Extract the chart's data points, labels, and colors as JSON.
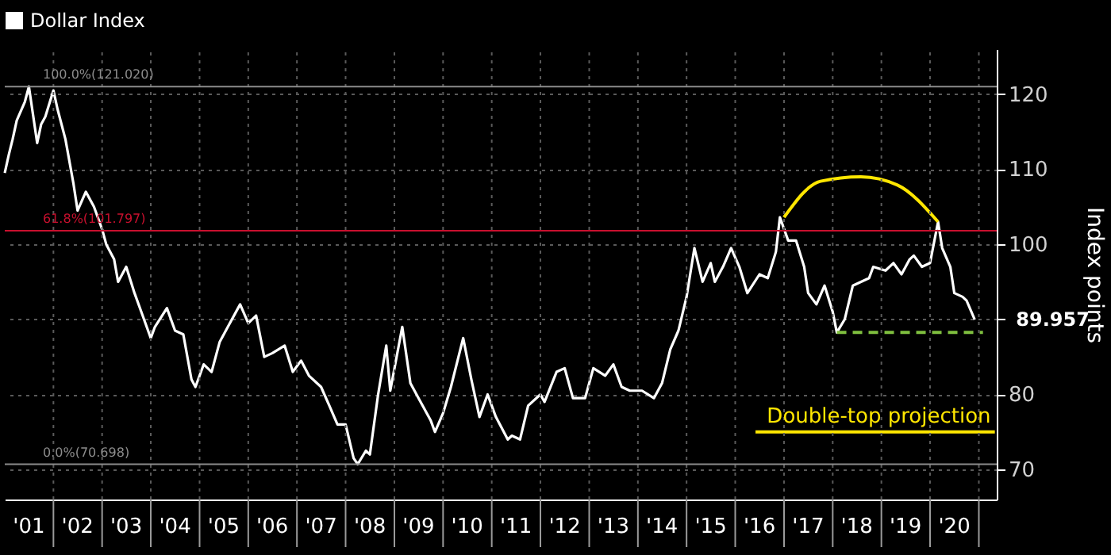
{
  "chart_data": {
    "type": "line",
    "ylabel": "Index points",
    "legend": "top left",
    "grid": true,
    "marker": "none",
    "xlim": [
      "2001-01-01",
      "2021-05-15"
    ],
    "ylim": [
      66,
      126
    ],
    "yticks": [
      70,
      80,
      {
        "value": 90,
        "label": null
      },
      100,
      110,
      120
    ],
    "xticks": [
      {
        "value": "2001-07-01",
        "label": "'01"
      },
      {
        "value": "2002-07-01",
        "label": "'02"
      },
      {
        "value": "2003-07-01",
        "label": "'03"
      },
      {
        "value": "2004-07-01",
        "label": "'04"
      },
      {
        "value": "2005-07-01",
        "label": "'05"
      },
      {
        "value": "2006-07-01",
        "label": "'06"
      },
      {
        "value": "2007-07-01",
        "label": "'07"
      },
      {
        "value": "2008-07-01",
        "label": "'08"
      },
      {
        "value": "2009-07-01",
        "label": "'09"
      },
      {
        "value": "2010-07-01",
        "label": "'10"
      },
      {
        "value": "2011-07-01",
        "label": "'11"
      },
      {
        "value": "2012-07-01",
        "label": "'12"
      },
      {
        "value": "2013-07-01",
        "label": "'13"
      },
      {
        "value": "2014-07-01",
        "label": "'14"
      },
      {
        "value": "2015-07-01",
        "label": "'15"
      },
      {
        "value": "2016-07-01",
        "label": "'16"
      },
      {
        "value": "2017-07-01",
        "label": "'17"
      },
      {
        "value": "2018-07-01",
        "label": "'18"
      },
      {
        "value": "2019-07-01",
        "label": "'19"
      },
      {
        "value": "2020-07-01",
        "label": "'20"
      },
      {
        "value": "2002-01-01",
        "label": null
      },
      {
        "value": "2003-01-01",
        "label": null
      },
      {
        "value": "2004-01-01",
        "label": null
      },
      {
        "value": "2005-01-01",
        "label": null
      },
      {
        "value": "2006-01-01",
        "label": null
      },
      {
        "value": "2007-01-01",
        "label": null
      },
      {
        "value": "2008-01-01",
        "label": null
      },
      {
        "value": "2009-01-01",
        "label": null
      },
      {
        "value": "2010-01-01",
        "label": null
      },
      {
        "value": "2011-01-01",
        "label": null
      },
      {
        "value": "2012-01-01",
        "label": null
      },
      {
        "value": "2013-01-01",
        "label": null
      },
      {
        "value": "2014-01-01",
        "label": null
      },
      {
        "value": "2015-01-01",
        "label": null
      },
      {
        "value": "2016-01-01",
        "label": null
      },
      {
        "value": "2017-01-01",
        "label": null
      },
      {
        "value": "2018-01-01",
        "label": null
      },
      {
        "value": "2019-01-01",
        "label": null
      },
      {
        "value": "2020-01-01",
        "label": null
      },
      {
        "value": "2021-01-01",
        "label": null
      }
    ],
    "series": [
      {
        "name": "Dollar Index",
        "color": "#ffffff",
        "x": [
          "2001-01",
          "2001-02",
          "2001-03",
          "2001-04",
          "2001-06",
          "2001-07",
          "2001-09",
          "2001-10",
          "2001-11",
          "2002-01",
          "2002-02",
          "2002-04",
          "2002-06",
          "2002-07",
          "2002-09",
          "2002-11",
          "2003-01",
          "2003-02",
          "2003-04",
          "2003-05",
          "2003-07",
          "2003-09",
          "2003-11",
          "2004-01",
          "2004-02",
          "2004-05",
          "2004-07",
          "2004-09",
          "2004-11",
          "2004-12",
          "2005-02",
          "2005-04",
          "2005-06",
          "2005-08",
          "2005-11",
          "2006-01",
          "2006-03",
          "2006-05",
          "2006-07",
          "2006-10",
          "2006-12",
          "2007-02",
          "2007-04",
          "2007-07",
          "2007-09",
          "2007-11",
          "2008-01",
          "2008-03",
          "2008-04",
          "2008-06",
          "2008-07",
          "2008-09",
          "2008-11",
          "2008-12",
          "2009-03",
          "2009-05",
          "2009-07",
          "2009-10",
          "2009-11",
          "2010-01",
          "2010-03",
          "2010-06",
          "2010-08",
          "2010-10",
          "2010-12",
          "2011-02",
          "2011-05",
          "2011-06",
          "2011-08",
          "2011-10",
          "2012-01",
          "2012-02",
          "2012-05",
          "2012-07",
          "2012-09",
          "2012-12",
          "2013-02",
          "2013-05",
          "2013-07",
          "2013-09",
          "2013-11",
          "2014-02",
          "2014-05",
          "2014-07",
          "2014-09",
          "2014-11",
          "2015-01",
          "2015-03",
          "2015-05",
          "2015-07",
          "2015-08",
          "2015-10",
          "2015-12",
          "2016-02",
          "2016-04",
          "2016-07",
          "2016-09",
          "2016-11",
          "2016-12",
          "2017-02",
          "2017-04",
          "2017-06",
          "2017-07",
          "2017-09",
          "2017-11",
          "2018-01",
          "2018-02",
          "2018-04",
          "2018-06",
          "2018-08",
          "2018-10",
          "2018-11",
          "2019-02",
          "2019-04",
          "2019-06",
          "2019-08",
          "2019-09",
          "2019-11",
          "2020-01",
          "2020-03",
          "2020-04",
          "2020-06",
          "2020-07",
          "2020-09",
          "2020-10",
          "2020-12"
        ],
        "values": [
          109.5,
          112,
          114,
          116.5,
          119,
          121.02,
          113.5,
          116,
          117,
          120.5,
          118,
          114,
          108,
          104.5,
          107,
          105,
          102,
          100,
          98,
          95,
          97,
          93.5,
          90.5,
          87.5,
          89,
          91.5,
          88.5,
          88,
          82,
          81,
          84,
          83,
          87,
          89,
          92,
          89.5,
          90.5,
          85,
          85.5,
          86.5,
          83,
          84.5,
          82.5,
          81,
          78.5,
          76,
          76,
          71.5,
          70.698,
          72.5,
          72,
          80,
          86.5,
          80.5,
          89,
          81.5,
          79.5,
          76.5,
          75,
          77.5,
          81,
          87.5,
          82,
          77,
          80,
          77,
          74,
          74.5,
          74,
          78.5,
          80,
          79,
          83,
          83.5,
          79.5,
          79.5,
          83.5,
          82.5,
          84,
          81,
          80.5,
          80.5,
          79.5,
          81.5,
          86,
          88.5,
          93,
          99.5,
          95,
          97.5,
          95,
          97,
          99.5,
          97,
          93.5,
          96,
          95.5,
          99,
          103.6,
          100.5,
          100.5,
          97,
          93.5,
          92,
          94.5,
          91,
          88.25,
          90,
          94.5,
          95,
          95.5,
          97,
          96.5,
          97.5,
          96,
          98,
          98.5,
          97,
          97.5,
          103,
          99.5,
          97,
          93.5,
          93,
          92.5,
          89.957
        ]
      },
      {
        "color": "#ffe600",
        "x": [
          "2017-01",
          "2017-10",
          "2018-08",
          "2019-05",
          "2020-03"
        ],
        "values": [
          103.6,
          108.4,
          109.0,
          107.9,
          103.0
        ]
      },
      {
        "color": "#7fbf3f",
        "line_style": "dashed",
        "x": [
          "2018-02",
          "2021-02"
        ],
        "values": [
          88.25,
          88.25
        ]
      },
      {
        "color": "#ffe600",
        "x": [
          "2016-06",
          "2021-05"
        ],
        "values": [
          75,
          75
        ]
      }
    ],
    "ref_lines": [
      {
        "axis": "y",
        "value": 121.02,
        "label": "100.0%(121.020)",
        "color": "#8c8c8c"
      },
      {
        "axis": "y",
        "value": 101.797,
        "label": "61.8%(101.797)",
        "color": "#c8102e"
      },
      {
        "axis": "y",
        "value": 70.698,
        "label": "0.0%(70.698)",
        "color": "#8c8c8c"
      }
    ],
    "annotations": [
      {
        "text": "89.957",
        "x": "2020-12",
        "y": 89.957
      },
      {
        "text": "Double-top projection",
        "x": "2021-04",
        "y": 75
      }
    ]
  }
}
